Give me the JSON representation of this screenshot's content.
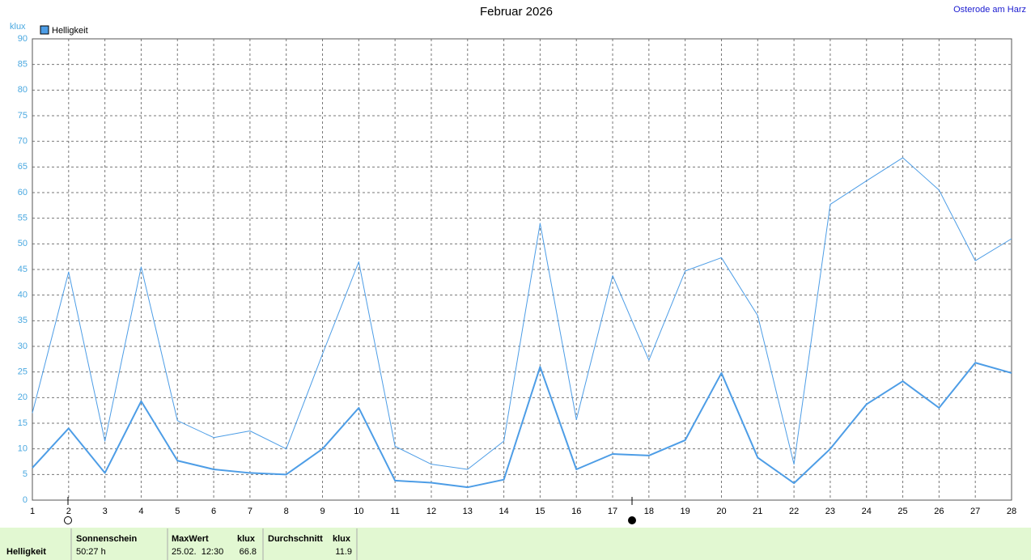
{
  "chart_data": {
    "type": "line",
    "title": "Februar 2026",
    "location": "Osterode am Harz",
    "y_label": "klux",
    "x": [
      1,
      2,
      3,
      4,
      5,
      6,
      7,
      8,
      9,
      10,
      11,
      12,
      13,
      14,
      15,
      16,
      17,
      18,
      19,
      20,
      21,
      22,
      23,
      24,
      25,
      26,
      27,
      28
    ],
    "xlim": [
      1,
      28
    ],
    "xticks": [
      1,
      2,
      3,
      4,
      5,
      6,
      7,
      8,
      9,
      10,
      11,
      12,
      13,
      14,
      15,
      16,
      17,
      18,
      19,
      20,
      21,
      22,
      23,
      24,
      25,
      26,
      27,
      28
    ],
    "ylim": [
      0,
      90
    ],
    "yticks": [
      0,
      5,
      10,
      15,
      20,
      25,
      30,
      35,
      40,
      45,
      50,
      55,
      60,
      65,
      70,
      75,
      80,
      85,
      90
    ],
    "grid": true,
    "legend": "top-left",
    "series": [
      {
        "name": "Helligkeit",
        "color": "#4d9de6",
        "line_width": 2,
        "values": [
          6.3,
          14,
          5.3,
          19.3,
          7.7,
          6,
          5.3,
          5,
          10,
          18,
          3.8,
          3.4,
          2.5,
          4,
          26,
          6,
          9,
          8.7,
          11.7,
          24.8,
          8.3,
          3.3,
          10,
          18.7,
          23.2,
          18,
          26.8,
          24.8
        ]
      },
      {
        "color": "#4d9de6",
        "line_width": 1,
        "values": [
          17,
          44.5,
          11.5,
          45.5,
          15.5,
          12.2,
          13.5,
          10,
          28.5,
          46.5,
          10.5,
          7,
          6,
          11.5,
          54,
          15.7,
          43.8,
          27.3,
          44.7,
          47.3,
          36,
          7,
          57.7,
          62.3,
          66.8,
          60.5,
          46.7,
          51
        ]
      }
    ]
  },
  "summary_table": {
    "row_label": "Helligkeit",
    "sunshine": {
      "header": "Sonnenschein",
      "value": "50:27 h"
    },
    "max": {
      "header": "MaxWert",
      "unit": "klux",
      "date": "25.02.  12:30",
      "value": 66.8
    },
    "average": {
      "header": "Durchschnitt",
      "unit": "klux",
      "value": 11.9
    }
  }
}
